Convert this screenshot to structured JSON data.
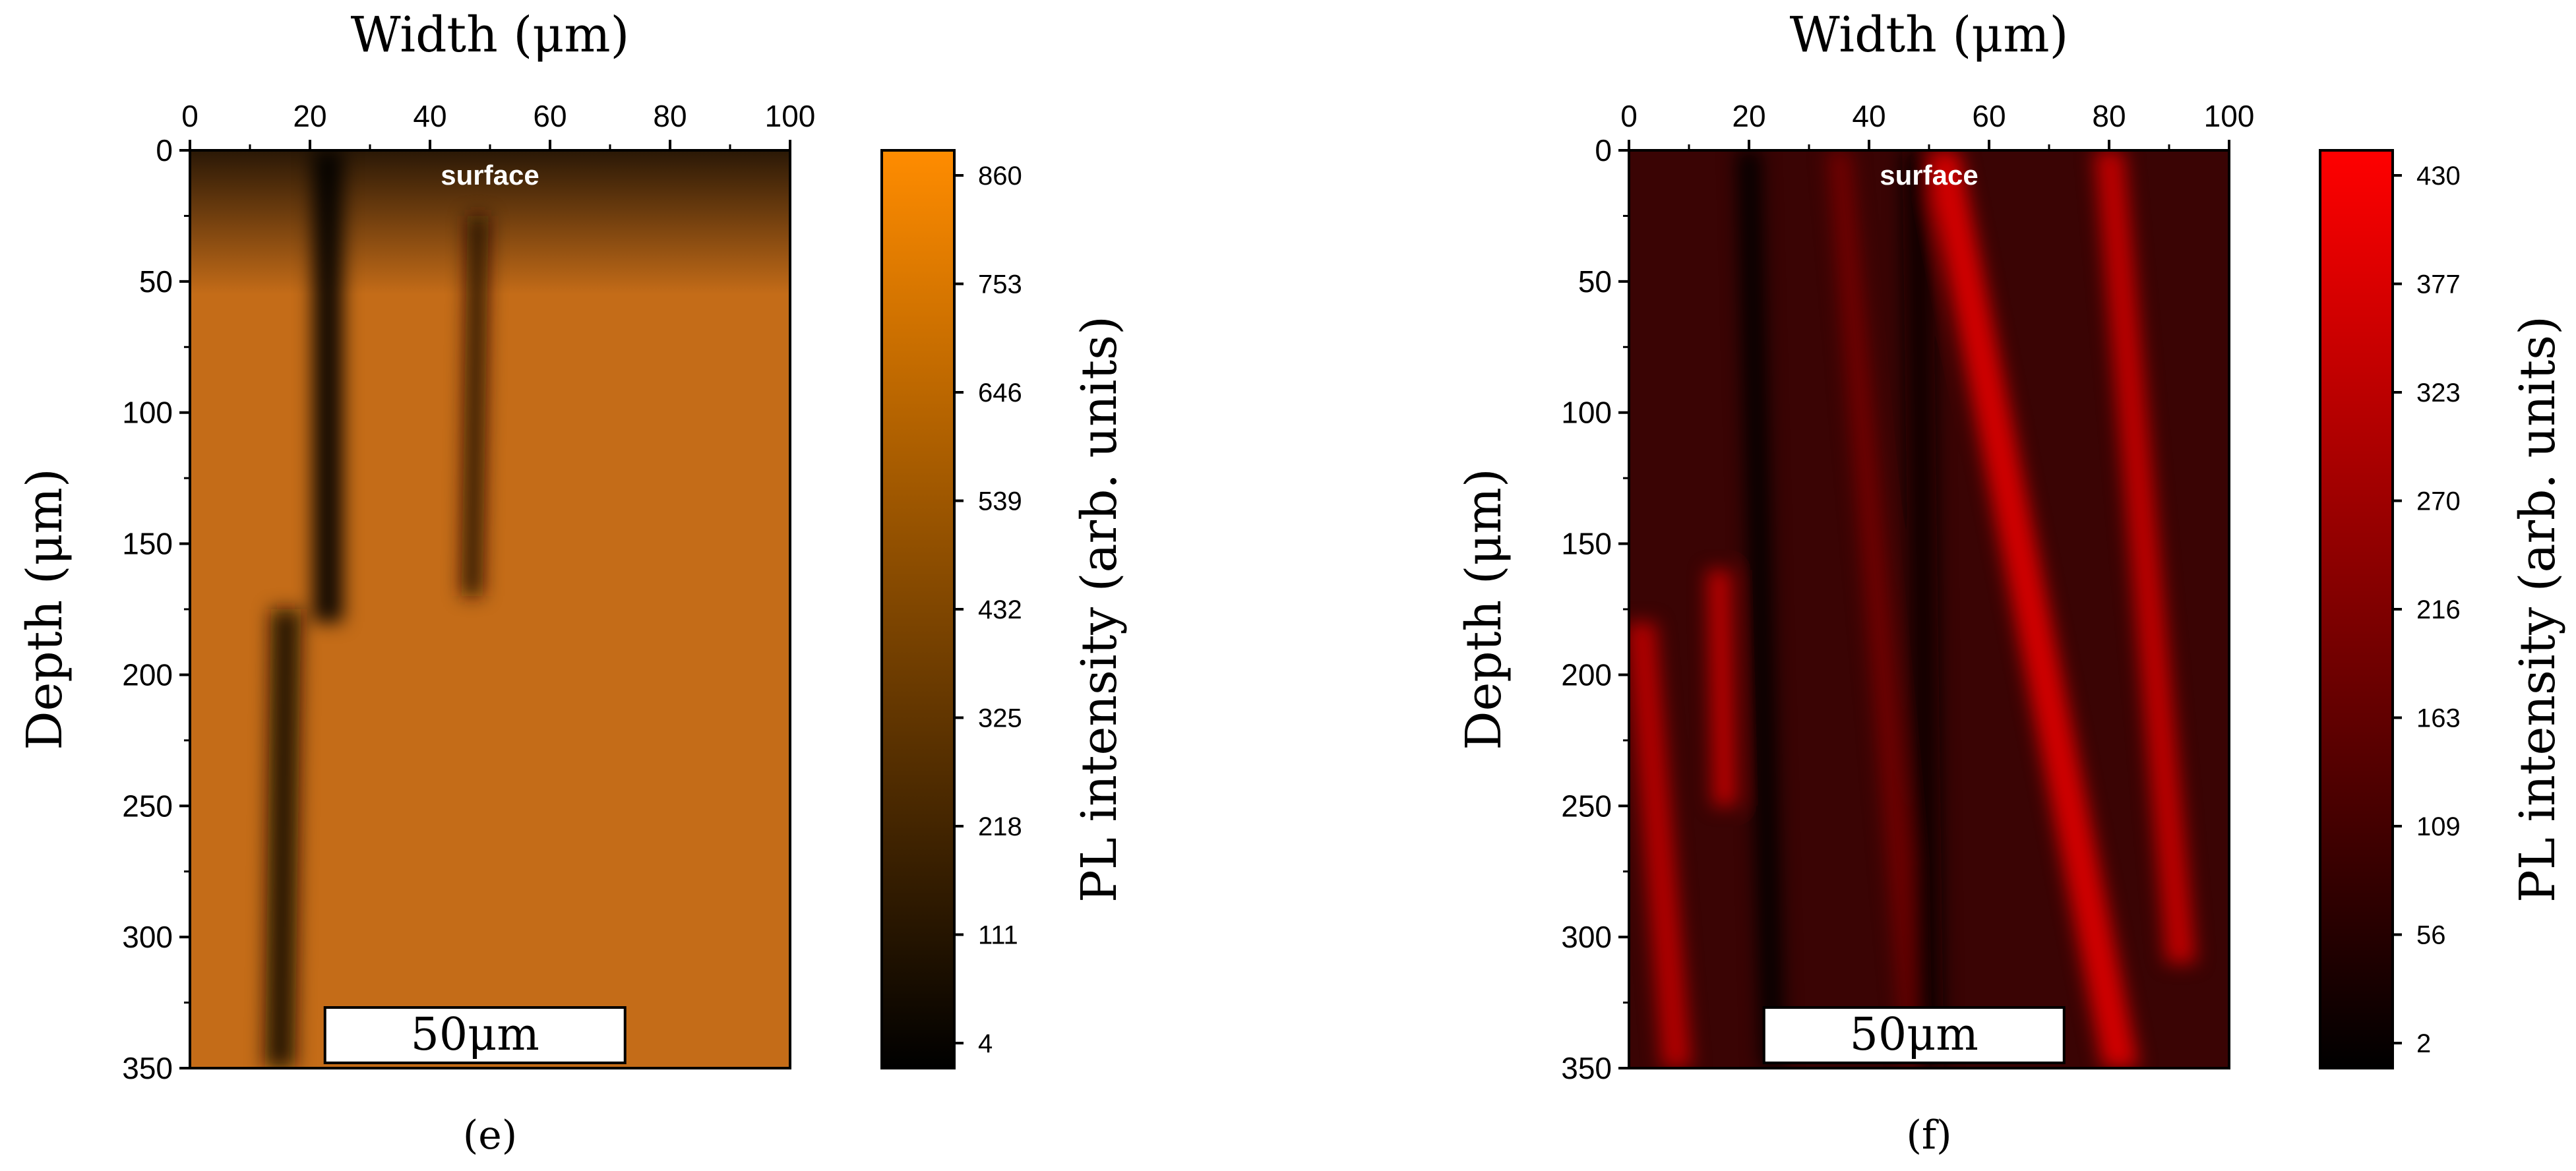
{
  "chart_data": [
    {
      "type": "heatmap",
      "panel_label": "(e)",
      "xlabel": "Width (μm)",
      "ylabel": "Depth (μm)",
      "colorbar_label": "PL intensity (arb. units)",
      "xlim": [
        0,
        100
      ],
      "ylim": [
        0,
        350
      ],
      "y_inverted": true,
      "x_ticks": [
        "0",
        "20",
        "40",
        "60",
        "80",
        "100"
      ],
      "y_ticks": [
        "0",
        "50",
        "100",
        "150",
        "200",
        "250",
        "300",
        "350"
      ],
      "colorbar_ticks": [
        "4",
        "111",
        "218",
        "325",
        "432",
        "539",
        "646",
        "753",
        "860"
      ],
      "colorbar_range": [
        4,
        860
      ],
      "colormap": {
        "low": "#000000",
        "high": "#ff8c00",
        "base": "#c46c18"
      },
      "annotation": "surface",
      "scale_bar": "50μm",
      "scale_bar_length_um": 50,
      "features": [
        {
          "kind": "dark_streak",
          "x_start": 23,
          "x_end": 23,
          "y_start": 0,
          "y_end": 180,
          "width_um": 5,
          "intensity": 20
        },
        {
          "kind": "dark_streak",
          "x_start": 48,
          "x_end": 47,
          "y_start": 25,
          "y_end": 170,
          "width_um": 3.5,
          "intensity": 120
        },
        {
          "kind": "dark_streak",
          "x_start": 16,
          "x_end": 15,
          "y_start": 175,
          "y_end": 350,
          "width_um": 5,
          "intensity": 80
        }
      ]
    },
    {
      "type": "heatmap",
      "panel_label": "(f)",
      "xlabel": "Width (μm)",
      "ylabel": "Depth (μm)",
      "colorbar_label": "PL intensity (arb. units)",
      "xlim": [
        0,
        100
      ],
      "ylim": [
        0,
        350
      ],
      "y_inverted": true,
      "x_ticks": [
        "0",
        "20",
        "40",
        "60",
        "80",
        "100"
      ],
      "y_ticks": [
        "0",
        "50",
        "100",
        "150",
        "200",
        "250",
        "300",
        "350"
      ],
      "colorbar_ticks": [
        "2",
        "56",
        "109",
        "163",
        "216",
        "270",
        "323",
        "377",
        "430"
      ],
      "colorbar_range": [
        2,
        430
      ],
      "colormap": {
        "low": "#000000",
        "high": "#ff0000",
        "base": "#3a0404"
      },
      "annotation": "surface",
      "scale_bar": "50μm",
      "scale_bar_length_um": 50,
      "features": [
        {
          "kind": "bright_streak",
          "x_start": 52,
          "x_end": 82,
          "y_start": 0,
          "y_end": 350,
          "width_um": 6,
          "intensity": 380
        },
        {
          "kind": "bright_streak",
          "x_start": 80,
          "x_end": 92,
          "y_start": 0,
          "y_end": 310,
          "width_um": 5,
          "intensity": 340
        },
        {
          "kind": "bright_streak",
          "x_start": 15,
          "x_end": 16,
          "y_start": 160,
          "y_end": 250,
          "width_um": 4,
          "intensity": 330
        },
        {
          "kind": "bright_streak",
          "x_start": 2,
          "x_end": 8,
          "y_start": 180,
          "y_end": 350,
          "width_um": 5,
          "intensity": 320
        },
        {
          "kind": "bright_streak",
          "x_start": 35,
          "x_end": 48,
          "y_start": 0,
          "y_end": 350,
          "width_um": 4,
          "intensity": 200
        },
        {
          "kind": "dark_streak",
          "x_start": 20,
          "x_end": 24,
          "y_start": 0,
          "y_end": 350,
          "width_um": 4,
          "intensity": 10
        },
        {
          "kind": "dark_streak",
          "x_start": 48,
          "x_end": 50,
          "y_start": 0,
          "y_end": 350,
          "width_um": 5,
          "intensity": 15
        }
      ]
    }
  ]
}
